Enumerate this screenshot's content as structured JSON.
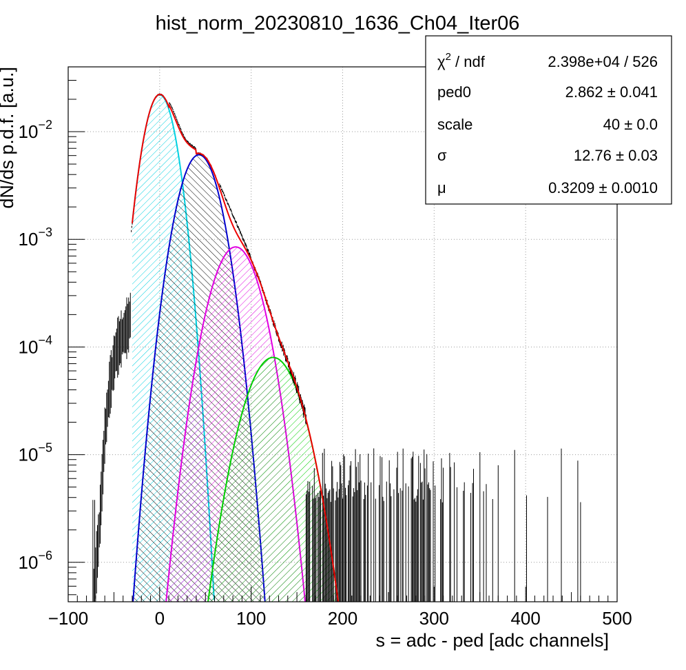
{
  "chart_data": {
    "type": "histogram",
    "title": "hist_norm_20230810_1636_Ch04_Iter06",
    "xlabel": "s = adc - ped [adc channels]",
    "ylabel": "dN/ds p.d.f. [a.u.]",
    "xlim": [
      -100,
      500
    ],
    "ylim": [
      4.3e-07,
      0.04
    ],
    "y_scale": "log",
    "grid": true,
    "x_ticks": [
      -100,
      0,
      100,
      200,
      300,
      400,
      500
    ],
    "x_tick_labels": [
      "−100",
      "0",
      "100",
      "200",
      "300",
      "400",
      "500"
    ],
    "y_ticks": [
      {
        "value": 1e-06,
        "base": "10",
        "exp": "−6"
      },
      {
        "value": 1e-05,
        "base": "10",
        "exp": "−5"
      },
      {
        "value": 0.0001,
        "base": "10",
        "exp": "−4"
      },
      {
        "value": 0.001,
        "base": "10",
        "exp": "−3"
      },
      {
        "value": 0.01,
        "base": "10",
        "exp": "−2"
      }
    ],
    "fit_range": [
      -30,
      220
    ],
    "components": [
      {
        "color": "#00d0e0",
        "peak": 0,
        "amplitude": 0.022,
        "sigma": 12.8,
        "hatch": "cyan"
      },
      {
        "color": "#0000cc",
        "peak": 43,
        "amplitude": 0.0061,
        "sigma": 16.5,
        "hatch": "black"
      },
      {
        "color": "#e000e0",
        "peak": 83,
        "amplitude": 0.00085,
        "sigma": 19.5,
        "hatch": "magenta"
      },
      {
        "color": "#00d000",
        "peak": 124,
        "amplitude": 8e-05,
        "sigma": 22.0,
        "hatch": "green"
      }
    ],
    "total_fit_color": "#ee0000",
    "histogram": {
      "peak_x": 0,
      "peak_y": 0.022,
      "low_tail": [
        [
          -72,
          5e-07
        ],
        [
          -66,
          2e-06
        ],
        [
          -60,
          1.5e-05
        ],
        [
          -55,
          4e-05
        ],
        [
          -48,
          9e-05
        ],
        [
          -40,
          0.00013
        ],
        [
          -34,
          0.00016
        ],
        [
          -31,
          0.00022
        ]
      ],
      "sparse_region_from": 160,
      "sparse_region_to": 470
    },
    "stats_box": {
      "rows": [
        {
          "label_main": "χ",
          "label_sup": "2",
          "label_rest": " / ndf",
          "value": "2.398e+04 / 526"
        },
        {
          "label_main": "ped0",
          "value": "2.862 ± 0.041"
        },
        {
          "label_main": "scale",
          "value": "40 ± 0.0"
        },
        {
          "label_main": "σ",
          "value": "12.76 ± 0.03"
        },
        {
          "label_main": "μ",
          "value": "0.3209 ± 0.0010"
        }
      ]
    }
  }
}
